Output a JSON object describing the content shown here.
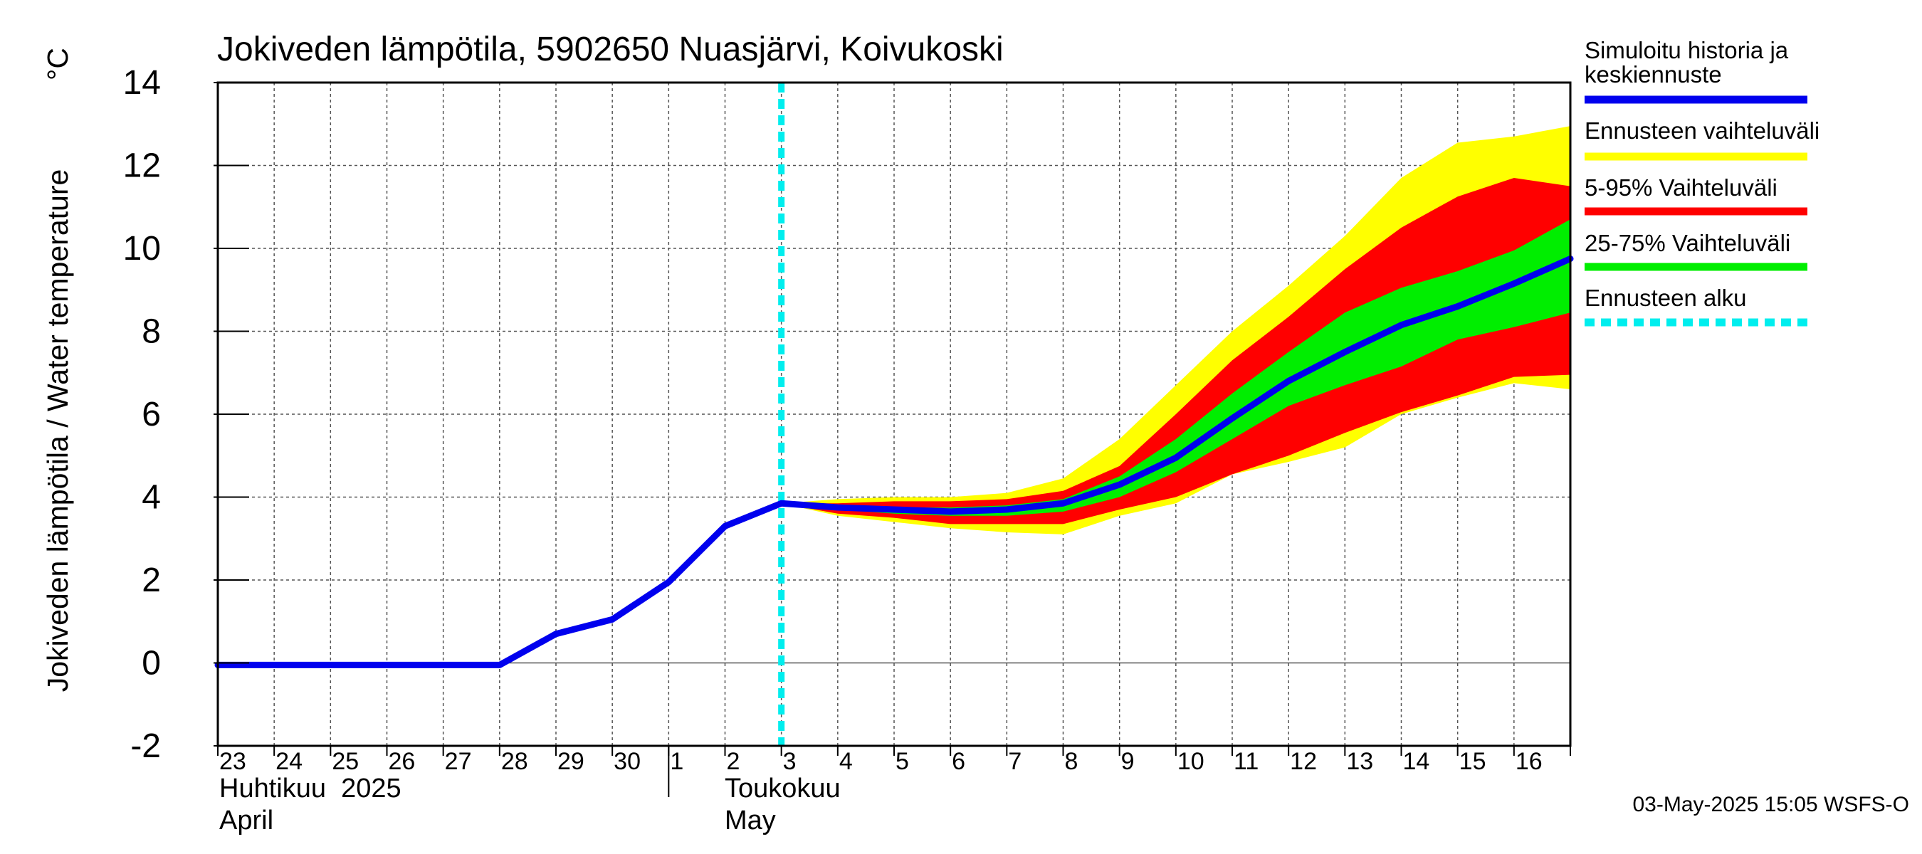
{
  "chart_data": {
    "type": "line",
    "title": "Jokiveden lämpötila, 5902650 Nuasjärvi, Koivukoski",
    "ylabel": "Jokiveden lämpötila / Water temperature",
    "yunit": "°C",
    "ylim": [
      -2,
      14
    ],
    "yticks": [
      -2,
      0,
      2,
      4,
      6,
      8,
      10,
      12,
      14
    ],
    "grid": true,
    "xlim": [
      "2025-04-23",
      "2025-05-17"
    ],
    "day_ticks": [
      "23",
      "24",
      "25",
      "26",
      "27",
      "28",
      "29",
      "30",
      "1",
      "2",
      "3",
      "4",
      "5",
      "6",
      "7",
      "8",
      "9",
      "10",
      "11",
      "12",
      "13",
      "14",
      "15",
      "16"
    ],
    "month_labels": [
      {
        "fi": "Huhtikuu  2025",
        "en": "April"
      },
      {
        "fi": "Toukokuu",
        "en": "May"
      }
    ],
    "forecast_start": "2025-05-03",
    "series": [
      {
        "name": "Simuloitu historia ja keskiennuste",
        "color": "#0000ee",
        "points": [
          [
            "2025-04-23",
            -0.05
          ],
          [
            "2025-04-24",
            -0.05
          ],
          [
            "2025-04-25",
            -0.05
          ],
          [
            "2025-04-26",
            -0.05
          ],
          [
            "2025-04-27",
            -0.05
          ],
          [
            "2025-04-28",
            -0.05
          ],
          [
            "2025-04-29",
            0.7
          ],
          [
            "2025-04-30",
            1.05
          ],
          [
            "2025-05-01",
            1.95
          ],
          [
            "2025-05-02",
            3.3
          ],
          [
            "2025-05-03",
            3.85
          ],
          [
            "2025-05-04",
            3.75
          ],
          [
            "2025-05-05",
            3.7
          ],
          [
            "2025-05-06",
            3.65
          ],
          [
            "2025-05-07",
            3.7
          ],
          [
            "2025-05-08",
            3.85
          ],
          [
            "2025-05-09",
            4.3
          ],
          [
            "2025-05-10",
            4.95
          ],
          [
            "2025-05-11",
            5.9
          ],
          [
            "2025-05-12",
            6.8
          ],
          [
            "2025-05-13",
            7.5
          ],
          [
            "2025-05-14",
            8.15
          ],
          [
            "2025-05-15",
            8.6
          ],
          [
            "2025-05-16",
            9.15
          ],
          [
            "2025-05-17",
            9.75
          ]
        ]
      }
    ],
    "bands": [
      {
        "name": "Ennusteen vaihteluväli",
        "color": "#ffff00",
        "points": [
          [
            "2025-05-03",
            3.85,
            3.85
          ],
          [
            "2025-05-04",
            3.95,
            3.55
          ],
          [
            "2025-05-05",
            4.0,
            3.4
          ],
          [
            "2025-05-06",
            4.0,
            3.25
          ],
          [
            "2025-05-07",
            4.1,
            3.15
          ],
          [
            "2025-05-08",
            4.45,
            3.1
          ],
          [
            "2025-05-09",
            5.4,
            3.55
          ],
          [
            "2025-05-10",
            6.7,
            3.85
          ],
          [
            "2025-05-11",
            8.0,
            4.55
          ],
          [
            "2025-05-12",
            9.1,
            4.85
          ],
          [
            "2025-05-13",
            10.3,
            5.2
          ],
          [
            "2025-05-14",
            11.7,
            6.0
          ],
          [
            "2025-05-15",
            12.55,
            6.4
          ],
          [
            "2025-05-16",
            12.7,
            6.75
          ],
          [
            "2025-05-17",
            12.95,
            6.6
          ]
        ]
      },
      {
        "name": "5-95% Vaihteluväli",
        "color": "#ff0000",
        "points": [
          [
            "2025-05-03",
            3.85,
            3.85
          ],
          [
            "2025-05-04",
            3.85,
            3.6
          ],
          [
            "2025-05-05",
            3.9,
            3.5
          ],
          [
            "2025-05-06",
            3.9,
            3.35
          ],
          [
            "2025-05-07",
            3.95,
            3.35
          ],
          [
            "2025-05-08",
            4.15,
            3.35
          ],
          [
            "2025-05-09",
            4.75,
            3.7
          ],
          [
            "2025-05-10",
            6.0,
            4.0
          ],
          [
            "2025-05-11",
            7.3,
            4.55
          ],
          [
            "2025-05-12",
            8.35,
            5.0
          ],
          [
            "2025-05-13",
            9.5,
            5.55
          ],
          [
            "2025-05-14",
            10.5,
            6.05
          ],
          [
            "2025-05-15",
            11.25,
            6.45
          ],
          [
            "2025-05-16",
            11.7,
            6.9
          ],
          [
            "2025-05-17",
            11.5,
            6.95
          ]
        ]
      },
      {
        "name": "25-75% Vaihteluväli",
        "color": "#00ee00",
        "points": [
          [
            "2025-05-03",
            3.85,
            3.85
          ],
          [
            "2025-05-04",
            3.8,
            3.7
          ],
          [
            "2025-05-05",
            3.75,
            3.6
          ],
          [
            "2025-05-06",
            3.75,
            3.55
          ],
          [
            "2025-05-07",
            3.8,
            3.55
          ],
          [
            "2025-05-08",
            3.95,
            3.65
          ],
          [
            "2025-05-09",
            4.5,
            4.0
          ],
          [
            "2025-05-10",
            5.4,
            4.6
          ],
          [
            "2025-05-11",
            6.5,
            5.4
          ],
          [
            "2025-05-12",
            7.5,
            6.2
          ],
          [
            "2025-05-13",
            8.45,
            6.7
          ],
          [
            "2025-05-14",
            9.05,
            7.15
          ],
          [
            "2025-05-15",
            9.45,
            7.8
          ],
          [
            "2025-05-16",
            9.95,
            8.1
          ],
          [
            "2025-05-17",
            10.7,
            8.45
          ]
        ]
      }
    ],
    "legend": {
      "placement": "right",
      "items": [
        {
          "label": "Simuloitu historia ja keskiennuste",
          "color": "#0000ee",
          "style": "solid"
        },
        {
          "label": "Ennusteen vaihteluväli",
          "color": "#ffff00",
          "style": "solid"
        },
        {
          "label": "5-95% Vaihteluväli",
          "color": "#ff0000",
          "style": "solid"
        },
        {
          "label": "25-75% Vaihteluväli",
          "color": "#00ee00",
          "style": "solid"
        },
        {
          "label": "Ennusteen alku",
          "color": "#00eeee",
          "style": "dashed"
        }
      ]
    },
    "footer": "03-May-2025 15:05 WSFS-O"
  }
}
